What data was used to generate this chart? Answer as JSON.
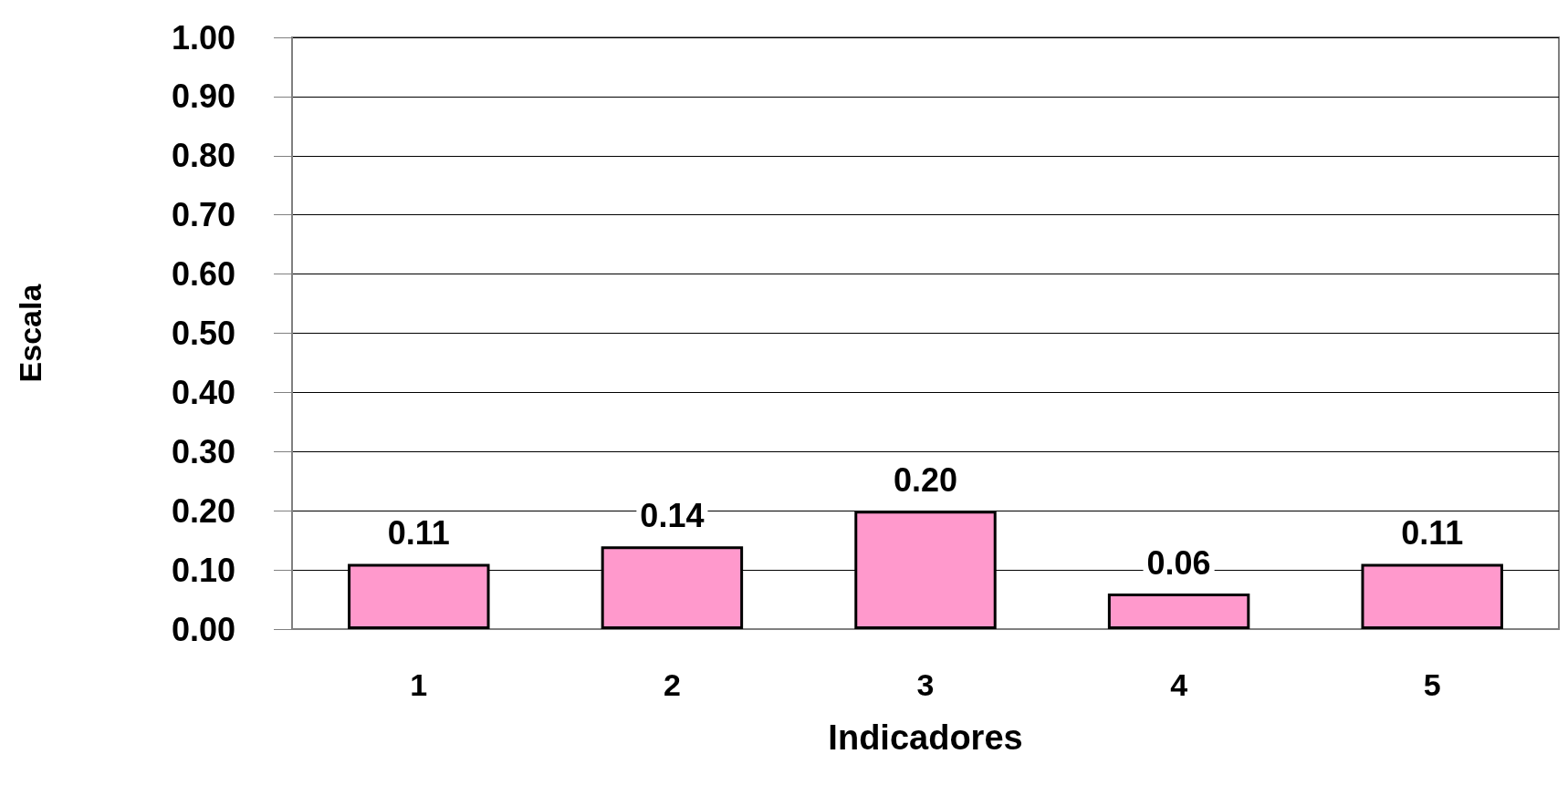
{
  "chart_data": {
    "type": "bar",
    "xlabel": "Indicadores",
    "ylabel": "Escala",
    "categories": [
      "1",
      "2",
      "3",
      "4",
      "5"
    ],
    "values": [
      0.11,
      0.14,
      0.2,
      0.06,
      0.11
    ],
    "value_labels": [
      "0.11",
      "0.14",
      "0.20",
      "0.06",
      "0.11"
    ],
    "color": "#ff99cc",
    "ylim": [
      0,
      1
    ],
    "yticks": [
      {
        "value": 0,
        "label": "0.00"
      },
      {
        "value": 0.1,
        "label": "0.10"
      },
      {
        "value": 0.2,
        "label": "0.20"
      },
      {
        "value": 0.3,
        "label": "0.30"
      },
      {
        "value": 0.4,
        "label": "0.40"
      },
      {
        "value": 0.5,
        "label": "0.50"
      },
      {
        "value": 0.6,
        "label": "0.60"
      },
      {
        "value": 0.7,
        "label": "0.70"
      },
      {
        "value": 0.8,
        "label": "0.80"
      },
      {
        "value": 0.9,
        "label": "0.90"
      },
      {
        "value": 1,
        "label": "1.00"
      }
    ],
    "grid": "y"
  }
}
